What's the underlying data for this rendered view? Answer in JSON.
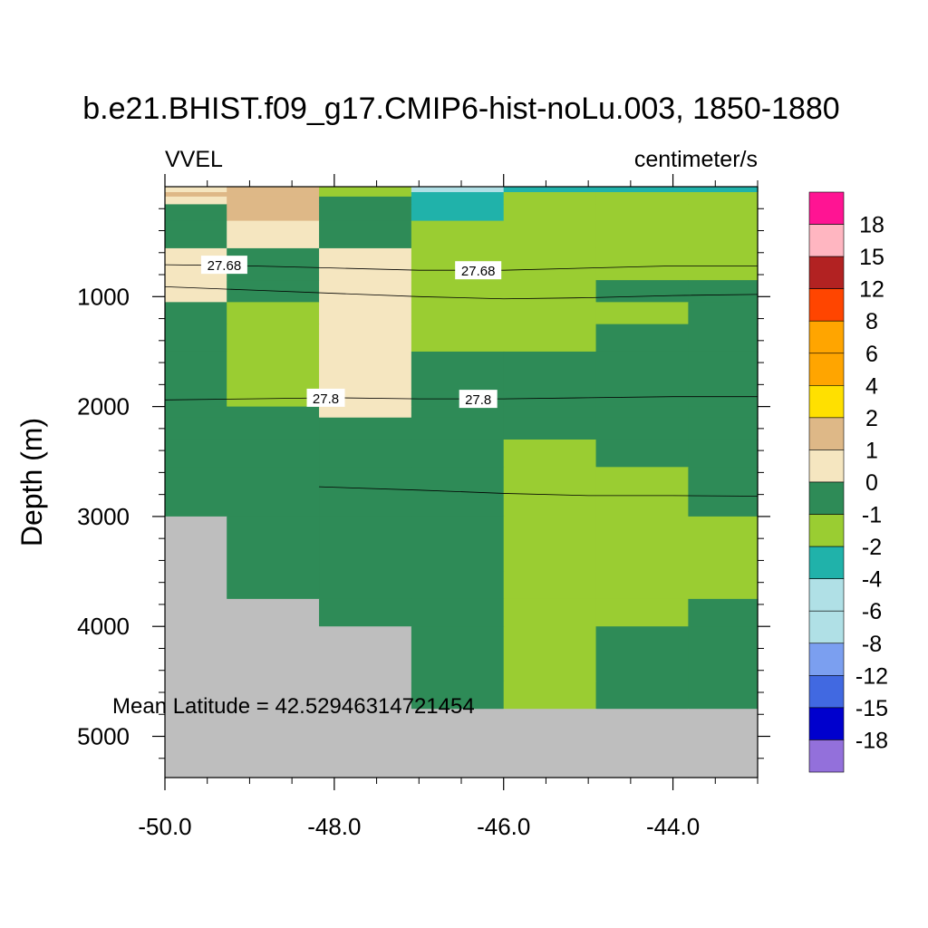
{
  "chart_data": {
    "type": "heatmap",
    "title": "b.e21.BHIST.f09_g17.CMIP6-hist-noLu.003, 1850-1880",
    "left_label": "VVEL",
    "right_label": "centimeter/s",
    "ylabel": "Depth (m)",
    "xlabel": "",
    "xlim": [
      -50.0,
      -43.0
    ],
    "ylim": [
      0,
      5375
    ],
    "y_inverted": true,
    "x_ticks": [
      -50.0,
      -48.0,
      -46.0,
      -44.0
    ],
    "x_tick_labels": [
      "-50.0",
      "-48.0",
      "-46.0",
      "-44.0"
    ],
    "y_ticks": [
      1000,
      2000,
      3000,
      4000,
      5000
    ],
    "y_tick_labels": [
      "1000",
      "2000",
      "3000",
      "4000",
      "5000"
    ],
    "annotation": "Mean Latitude = 42.52946314721454",
    "x_edges": [
      -50.0,
      -49.27,
      -48.18,
      -47.09,
      -46.0,
      -44.91,
      -43.82,
      -43.0
    ],
    "y_edges": [
      0,
      90,
      160,
      310,
      560,
      850,
      1050,
      1250,
      1500,
      1850,
      2000,
      2100,
      2300,
      2550,
      3000,
      3500,
      3750,
      4000,
      4500,
      4750,
      5375
    ],
    "color_grid": [
      [
        "0.5",
        "2",
        "-1",
        "-2",
        "-1",
        "-1",
        "-1"
      ],
      [
        "1",
        "2",
        "0",
        "-2",
        "-1",
        "-1",
        "-1"
      ],
      [
        "0",
        "2",
        "0",
        "-2",
        "-1",
        "-1",
        "-1"
      ],
      [
        "0",
        "1",
        "0",
        "-1",
        "-1",
        "-1",
        "-1"
      ],
      [
        "1",
        "0",
        "1",
        "-1",
        "-1",
        "-1",
        "-1"
      ],
      [
        "1",
        "0",
        "1",
        "-1",
        "-1",
        "0",
        "0"
      ],
      [
        "0",
        "-1",
        "1",
        "-1",
        "-1",
        "-1",
        "0"
      ],
      [
        "0",
        "-1",
        "1",
        "-1",
        "-1",
        "0",
        "0"
      ],
      [
        "0",
        "-1",
        "1",
        "0",
        "0",
        "0",
        "0"
      ],
      [
        "0",
        "-1",
        "1",
        "0",
        "0",
        "0",
        "0"
      ],
      [
        "0",
        "0",
        "1",
        "0",
        "0",
        "0",
        "0"
      ],
      [
        "0",
        "0",
        "0",
        "0",
        "0",
        "0",
        "0"
      ],
      [
        "0",
        "0",
        "0",
        "0",
        "-1",
        "0",
        "0"
      ],
      [
        "0",
        "0",
        "0",
        "0",
        "-1",
        "-1",
        "0"
      ],
      [
        "land",
        "0",
        "0",
        "0",
        "-1",
        "-1",
        "-1"
      ],
      [
        "land",
        "0",
        "0",
        "0",
        "-1",
        "-1",
        "-1"
      ],
      [
        "land",
        "land",
        "0",
        "0",
        "-1",
        "-1",
        "0"
      ],
      [
        "land",
        "land",
        "land",
        "0",
        "-1",
        "0",
        "0"
      ],
      [
        "land",
        "land",
        "land",
        "0",
        "-1",
        "0",
        "0"
      ],
      [
        "land",
        "land",
        "land",
        "land",
        "land",
        "land",
        "land"
      ]
    ],
    "top_strip": [
      "1",
      "2",
      "-1",
      "-4",
      "-2",
      "-2",
      "-2"
    ],
    "legend_levels": [
      "18",
      "15",
      "12",
      "8",
      "6",
      "4",
      "2",
      "1",
      "0",
      "-1",
      "-2",
      "-4",
      "-6",
      "-8",
      "-12",
      "-15",
      "-18"
    ],
    "legend_colors": [
      "#ff1493",
      "#ffb6c1",
      "#b22222",
      "#ff4500",
      "#ffa500",
      "#ffa500",
      "#ffe000",
      "#deb887",
      "#f5e6c0",
      "#2e8b57",
      "#9acd32",
      "#20b2aa",
      "#b0e0e6",
      "#b0e0e6",
      "#7b9ff0",
      "#4169e1",
      "#0000cd",
      "#9370db"
    ],
    "land_color": "#bebebe",
    "contour_lines": [
      {
        "label": "27.68",
        "points": [
          [
            -50.0,
            710
          ],
          [
            -49.0,
            720
          ],
          [
            -48.0,
            740
          ],
          [
            -47.0,
            760
          ],
          [
            -46.0,
            760
          ],
          [
            -45.0,
            740
          ],
          [
            -44.0,
            720
          ],
          [
            -43.0,
            720
          ]
        ],
        "label_positions": [
          [
            -49.3,
            710
          ],
          [
            -46.3,
            760
          ]
        ]
      },
      {
        "label": "",
        "points": [
          [
            -50.0,
            910
          ],
          [
            -49.0,
            940
          ],
          [
            -48.0,
            970
          ],
          [
            -47.0,
            1000
          ],
          [
            -46.0,
            1020
          ],
          [
            -45.0,
            1010
          ],
          [
            -44.0,
            990
          ],
          [
            -43.0,
            980
          ]
        ],
        "label_positions": []
      },
      {
        "label": "27.8",
        "points": [
          [
            -50.0,
            1940
          ],
          [
            -49.0,
            1930
          ],
          [
            -48.0,
            1920
          ],
          [
            -47.0,
            1930
          ],
          [
            -46.0,
            1930
          ],
          [
            -45.0,
            1920
          ],
          [
            -44.0,
            1910
          ],
          [
            -43.0,
            1910
          ]
        ],
        "label_positions": [
          [
            -48.1,
            1920
          ],
          [
            -46.3,
            1930
          ]
        ]
      },
      {
        "label": "",
        "points": [
          [
            -48.18,
            2730
          ],
          [
            -47.0,
            2760
          ],
          [
            -46.0,
            2790
          ],
          [
            -45.0,
            2810
          ],
          [
            -44.0,
            2810
          ],
          [
            -43.0,
            2815
          ]
        ],
        "label_positions": []
      }
    ]
  }
}
